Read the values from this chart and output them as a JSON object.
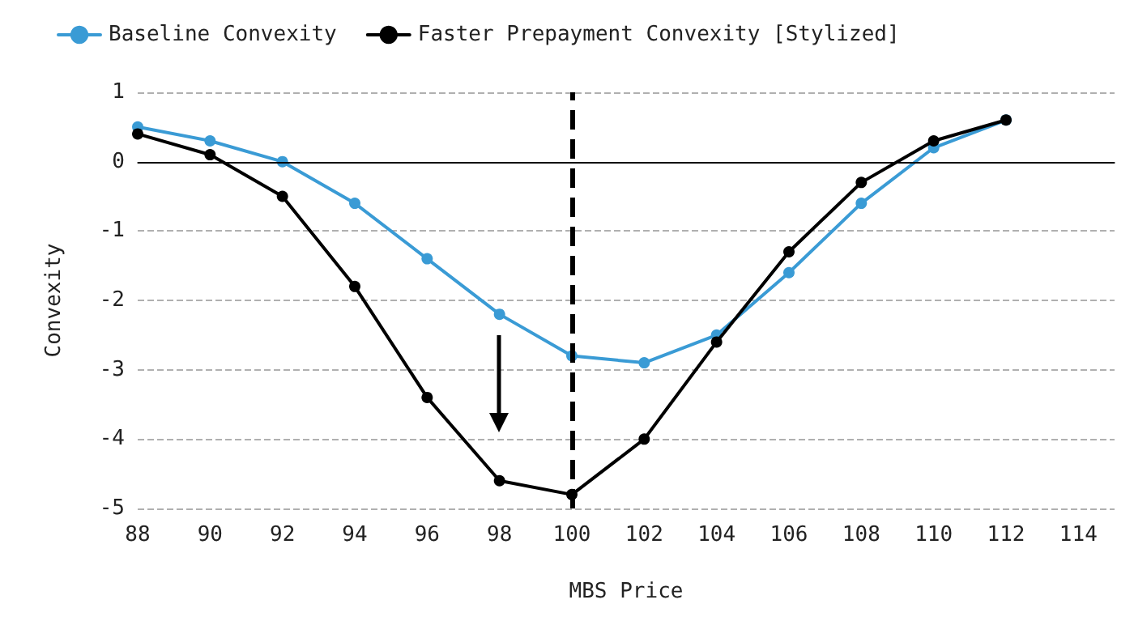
{
  "chart_data": {
    "type": "line",
    "xlabel": "MBS Price",
    "ylabel": "Convexity",
    "x": [
      88,
      90,
      92,
      94,
      96,
      98,
      100,
      102,
      104,
      106,
      108,
      110,
      112
    ],
    "series": [
      {
        "name": "Baseline Convexity",
        "color": "#3a9bd5",
        "values": [
          0.5,
          0.3,
          0,
          -0.6,
          -1.4,
          -2.2,
          -2.8,
          -2.9,
          -2.5,
          -1.6,
          -0.6,
          0.2,
          0.6
        ]
      },
      {
        "name": "Faster Prepayment Convexity [Stylized]",
        "color": "#000000",
        "values": [
          0.4,
          0.1,
          -0.5,
          -1.8,
          -3.4,
          -4.6,
          -4.8,
          -4.0,
          -2.6,
          -1.3,
          -0.3,
          0.3,
          0.6
        ]
      }
    ],
    "xlim": [
      88,
      115
    ],
    "xticks": [
      88,
      90,
      92,
      94,
      96,
      98,
      100,
      102,
      104,
      106,
      108,
      110,
      112,
      114
    ],
    "ylim": [
      -5,
      1
    ],
    "yticks": [
      -5,
      -4,
      -3,
      -2,
      -1,
      0,
      1
    ],
    "ref_lines": [
      {
        "axis": "y",
        "value": 0,
        "color": "#000000",
        "line_style": "solid"
      },
      {
        "axis": "x",
        "value": 100,
        "color": "#000000",
        "line_style": "dashed"
      }
    ],
    "grid": "y",
    "legend": "top left",
    "marker": "circle",
    "line_style": "solid"
  }
}
